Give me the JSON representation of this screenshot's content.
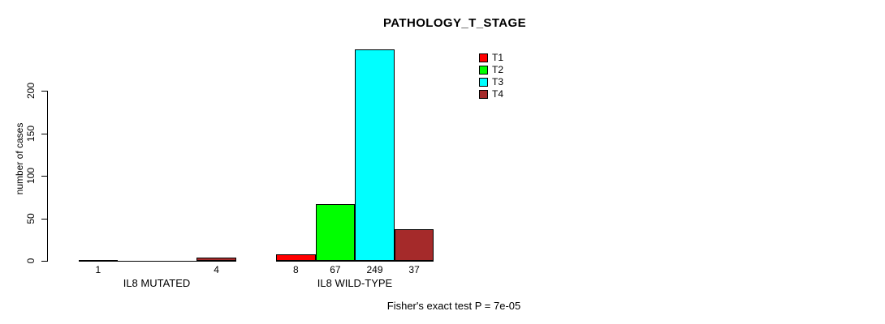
{
  "chart_data": {
    "type": "bar",
    "title": "PATHOLOGY_T_STAGE",
    "ylabel": "number of cases",
    "xlabel": "",
    "categories": [
      "IL8 MUTATED",
      "IL8 WILD-TYPE"
    ],
    "series": [
      {
        "name": "T1",
        "color": "#FF0000",
        "values": [
          1,
          8
        ]
      },
      {
        "name": "T2",
        "color": "#00FF00",
        "values": [
          0,
          67
        ]
      },
      {
        "name": "T3",
        "color": "#00FFFF",
        "values": [
          0,
          249
        ]
      },
      {
        "name": "T4",
        "color": "#A52A2A",
        "values": [
          4,
          37
        ]
      }
    ],
    "bar_labels": [
      [
        "1",
        "",
        "",
        "4"
      ],
      [
        "8",
        "67",
        "249",
        "37"
      ]
    ],
    "yticks": [
      0,
      50,
      100,
      150,
      200
    ],
    "ylim": [
      0,
      249
    ],
    "grid": false,
    "legend_position": "top-right",
    "legend_items": [
      "T1",
      "T2",
      "T3",
      "T4"
    ],
    "annotation": "Fisher's exact test P = 7e-05",
    "axis_color": "#000000",
    "background_color": "#ffffff"
  }
}
